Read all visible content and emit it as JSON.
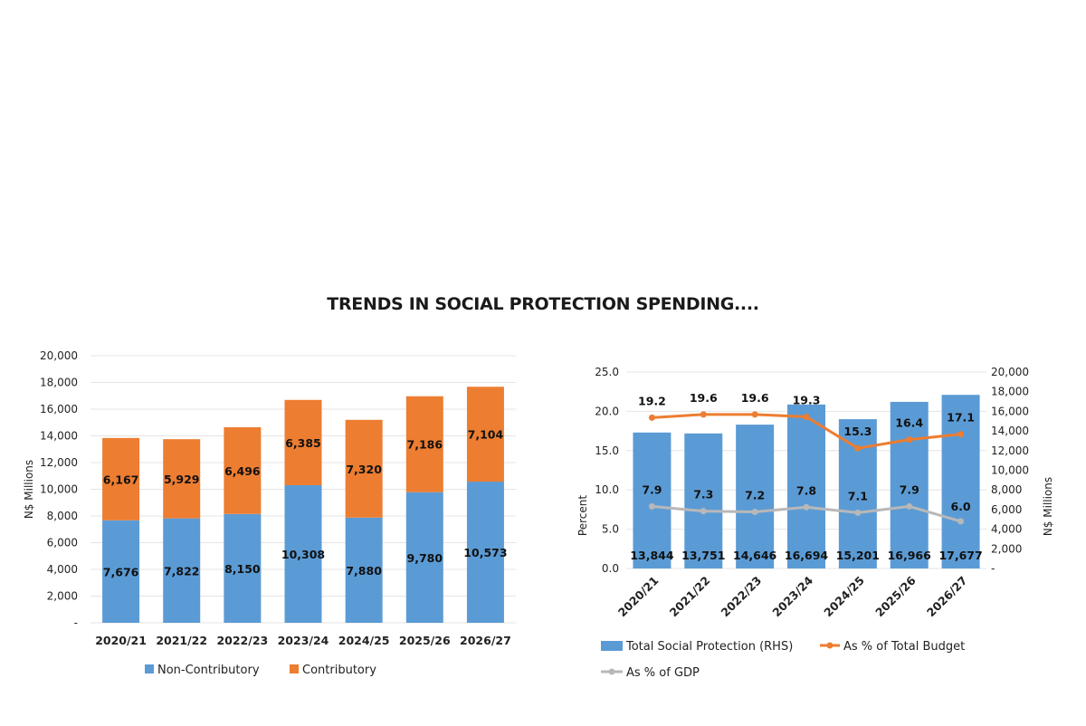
{
  "title": "TRENDS IN SOCIAL PROTECTION SPENDING....",
  "colors": {
    "blue": "#5b9bd5",
    "orange": "#ed7d31",
    "gray": "#b8b8b8",
    "grid": "#e4e4e4"
  },
  "chart_data": [
    {
      "type": "bar",
      "stacked": true,
      "categories": [
        "2020/21",
        "2021/22",
        "2022/23",
        "2023/24",
        "2024/25",
        "2025/26",
        "2026/27"
      ],
      "series": [
        {
          "name": "Non-Contributory",
          "values": [
            7676,
            7822,
            8150,
            10308,
            7880,
            9780,
            10573
          ],
          "labels": [
            "7,676",
            "7,822",
            "8,150",
            "10,308",
            "7,880",
            "9,780",
            "10,573"
          ]
        },
        {
          "name": "Contributory",
          "values": [
            6167,
            5929,
            6496,
            6385,
            7320,
            7186,
            7104
          ],
          "labels": [
            "6,167",
            "5,929",
            "6,496",
            "6,385",
            "7,320",
            "7,186",
            "7,104"
          ]
        }
      ],
      "ylabel": "N$ Millions",
      "ylim": [
        0,
        20000
      ],
      "yticks": [
        "-",
        "2,000",
        "4,000",
        "6,000",
        "8,000",
        "10,000",
        "12,000",
        "14,000",
        "16,000",
        "18,000",
        "20,000"
      ],
      "legend": "bottom"
    },
    {
      "type": "bar+line",
      "categories": [
        "2020/21",
        "2021/22",
        "2022/23",
        "2023/24",
        "2024/25",
        "2025/26",
        "2026/27"
      ],
      "bar_series": {
        "name": "Total Social Protection (RHS)",
        "values": [
          13844,
          13751,
          14646,
          16694,
          15201,
          16966,
          17677
        ],
        "labels": [
          "13,844",
          "13,751",
          "14,646",
          "16,694",
          "15,201",
          "16,966",
          "17,677"
        ]
      },
      "line_series": [
        {
          "name": "As % of Total Budget",
          "values": [
            19.2,
            19.6,
            19.6,
            19.3,
            15.3,
            16.4,
            17.1
          ],
          "labels": [
            "19.2",
            "19.6",
            "19.6",
            "19.3",
            "15.3",
            "16.4",
            "17.1"
          ]
        },
        {
          "name": "As % of GDP",
          "values": [
            7.9,
            7.3,
            7.2,
            7.8,
            7.1,
            7.9,
            6.0
          ],
          "labels": [
            "7.9",
            "7.3",
            "7.2",
            "7.8",
            "7.1",
            "7.9",
            "6.0"
          ]
        }
      ],
      "ylabel_left": "Percent",
      "ylim_left": [
        0,
        25
      ],
      "yticks_left": [
        "0.0",
        "5.0",
        "10.0",
        "15.0",
        "20.0",
        "25.0"
      ],
      "ylabel_right": "N$ Millions",
      "ylim_right": [
        0,
        20000
      ],
      "yticks_right": [
        "-",
        "2,000",
        "4,000",
        "6,000",
        "8,000",
        "10,000",
        "12,000",
        "14,000",
        "16,000",
        "18,000",
        "20,000"
      ],
      "legend": "bottom"
    }
  ]
}
